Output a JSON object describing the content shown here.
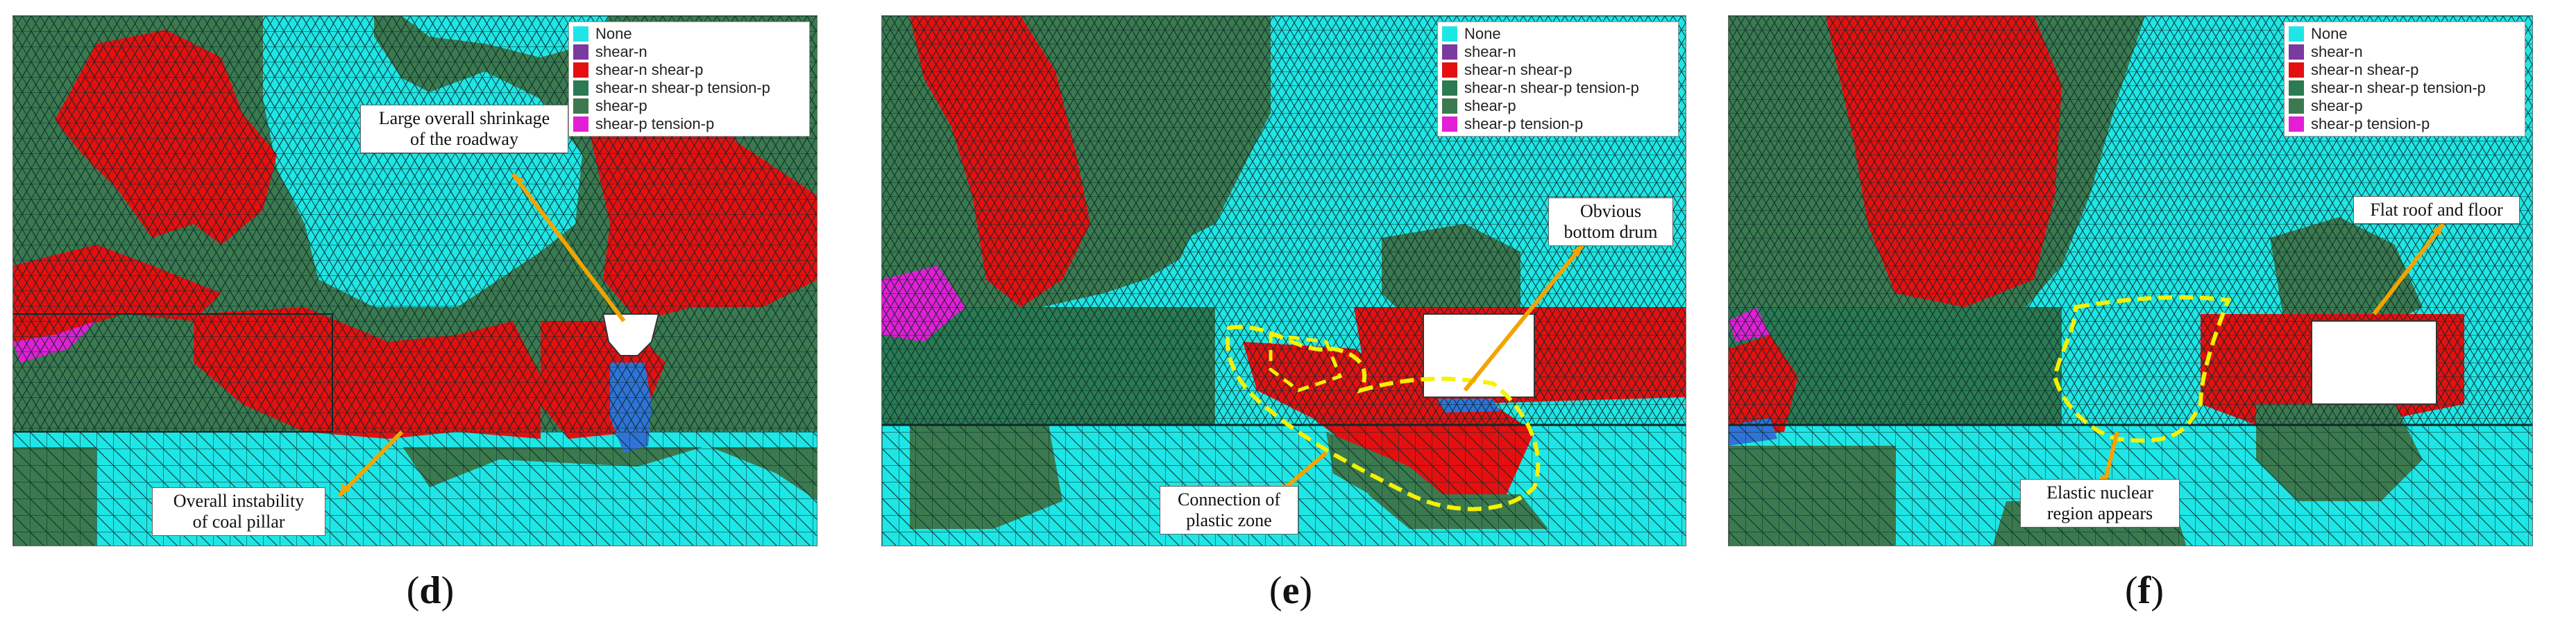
{
  "colors": {
    "none": "#1ee6e6",
    "shear_n": "#7a3aa0",
    "shear_n_shear_p": "#e60f0f",
    "shear_n_shear_p_tension_p": "#2a7a52",
    "shear_p": "#3b7a4f",
    "shear_p_tension_p": "#e21fd6",
    "blue_zone": "#2f73d8",
    "mesh": "#0b2a2a",
    "arrow": "#f2a400",
    "dashed": "#f4f200"
  },
  "legend": [
    {
      "label": "None",
      "color": "#1ee6e6"
    },
    {
      "label": "shear-n",
      "color": "#7a3aa0"
    },
    {
      "label": "shear-n shear-p",
      "color": "#e60f0f"
    },
    {
      "label": "shear-n shear-p tension-p",
      "color": "#2a7a52"
    },
    {
      "label": "shear-p",
      "color": "#3b7a4f"
    },
    {
      "label": "shear-p tension-p",
      "color": "#e21fd6"
    }
  ],
  "panels": [
    {
      "id": "d",
      "label": "d",
      "callouts": [
        {
          "text": "Large overall shrinkage\nof the roadway"
        },
        {
          "text": "Overall instability\nof coal pillar"
        }
      ]
    },
    {
      "id": "e",
      "label": "e",
      "callouts": [
        {
          "text": "Obvious\nbottom drum"
        },
        {
          "text": "Connection of\nplastic zone"
        }
      ]
    },
    {
      "id": "f",
      "label": "f",
      "callouts": [
        {
          "text": "Flat roof and floor"
        },
        {
          "text": "Elastic nuclear\nregion appears"
        }
      ]
    }
  ]
}
